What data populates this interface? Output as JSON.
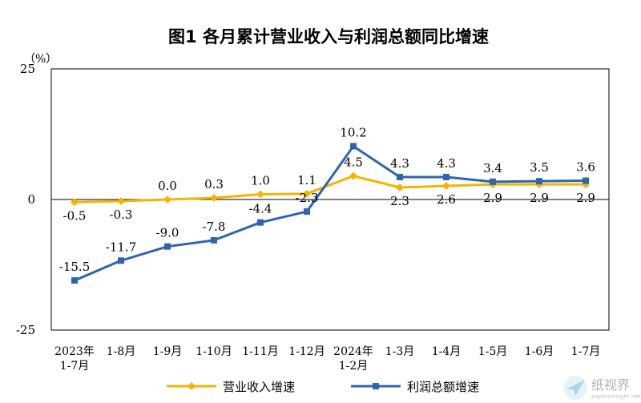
{
  "colors": {
    "revenue": "#f4b400",
    "profit": "#2e64b0",
    "frame": "#000000"
  },
  "chart_data": {
    "type": "line",
    "title": "图1  各月累计营业收入与利润总额同比增速",
    "unit": "（%）",
    "y_ticks": [
      "25",
      "0",
      "-25"
    ],
    "ylim": [
      -25,
      25
    ],
    "grid": false,
    "legend_position": "bottom",
    "categories": [
      [
        "2023年",
        "1-7月"
      ],
      [
        "1-8月"
      ],
      [
        "1-9月"
      ],
      [
        "1-10月"
      ],
      [
        "1-11月"
      ],
      [
        "1-12月"
      ],
      [
        "2024年",
        "1-2月"
      ],
      [
        "1-3月"
      ],
      [
        "1-4月"
      ],
      [
        "1-5月"
      ],
      [
        "1-6月"
      ],
      [
        "1-7月"
      ]
    ],
    "series": [
      {
        "name": "营业收入增速",
        "marker": "diamond",
        "values": [
          -0.5,
          -0.3,
          0.0,
          0.3,
          1.0,
          1.1,
          4.5,
          2.3,
          2.6,
          2.9,
          2.9,
          2.9
        ],
        "labels": [
          "-0.5",
          "-0.3",
          "0.0",
          "0.3",
          "1.0",
          "1.1",
          "4.5",
          "2.3",
          "2.6",
          "2.9",
          "2.9",
          "2.9"
        ],
        "label_side": [
          "below",
          "below",
          "above",
          "above",
          "above",
          "above",
          "above",
          "below",
          "below",
          "below",
          "below",
          "below"
        ]
      },
      {
        "name": "利润总额增速",
        "marker": "square",
        "values": [
          -15.5,
          -11.7,
          -9.0,
          -7.8,
          -4.4,
          -2.3,
          10.2,
          4.3,
          4.3,
          3.4,
          3.5,
          3.6
        ],
        "labels": [
          "-15.5",
          "-11.7",
          "-9.0",
          "-7.8",
          "-4.4",
          "-2.3",
          "10.2",
          "4.3",
          "4.3",
          "3.4",
          "3.5",
          "3.6"
        ],
        "label_side": [
          "above",
          "above",
          "above",
          "above",
          "above",
          "above",
          "above",
          "above",
          "above",
          "above",
          "above",
          "above"
        ]
      }
    ]
  },
  "watermark": {
    "text": "纸视界",
    "subtext": "papersinsight.net",
    "icon": "paper-plane-logo-icon"
  }
}
